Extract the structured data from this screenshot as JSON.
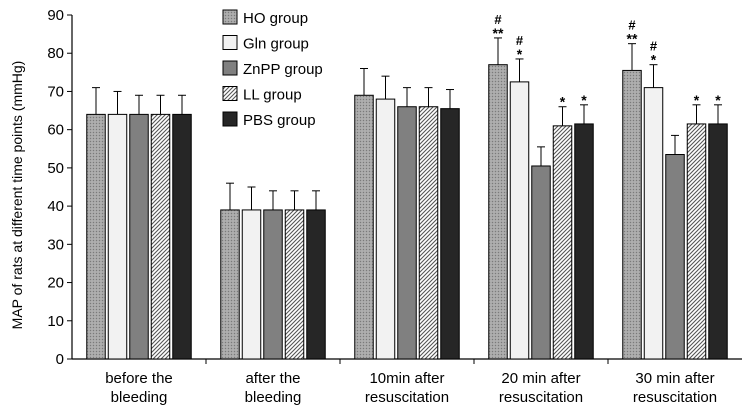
{
  "chart_data": {
    "type": "bar",
    "ylabel": "MAP of rats  at different time points (mmHg)",
    "ylim": [
      0,
      90
    ],
    "yticks": [
      0,
      10,
      20,
      30,
      40,
      50,
      60,
      70,
      80,
      90
    ],
    "grid": false,
    "legend_placement": "top-center",
    "categories": [
      [
        "before the",
        "bleeding"
      ],
      [
        "after the",
        "bleeding"
      ],
      [
        "10min after",
        "resuscitation"
      ],
      [
        "20 min after",
        "resuscitation"
      ],
      [
        "30 min after",
        "resuscitation"
      ]
    ],
    "series": [
      {
        "name": "HO group",
        "fill": "#a6a6a6",
        "pattern": "dots",
        "values": [
          64,
          39,
          69,
          77,
          75.5
        ],
        "errors": [
          7,
          7,
          7,
          7,
          7
        ],
        "annotations": [
          [],
          [],
          [],
          [
            "#",
            "**"
          ],
          [
            "#",
            "**"
          ]
        ]
      },
      {
        "name": "Gln group",
        "fill": "#f2f2f2",
        "pattern": "none",
        "values": [
          64,
          39,
          68,
          72.5,
          71
        ],
        "errors": [
          6,
          6,
          6,
          6,
          6
        ],
        "annotations": [
          [],
          [],
          [],
          [
            "#",
            "*"
          ],
          [
            "#",
            "*"
          ]
        ]
      },
      {
        "name": "ZnPP group",
        "fill": "#808080",
        "pattern": "none",
        "values": [
          64,
          39,
          66,
          50.5,
          53.5
        ],
        "errors": [
          5,
          5,
          5,
          5,
          5
        ],
        "annotations": [
          [],
          [],
          [],
          [],
          []
        ]
      },
      {
        "name": "LL group",
        "fill": "#ffffff",
        "pattern": "diagonal",
        "values": [
          64,
          39,
          66,
          61,
          61.5
        ],
        "errors": [
          5,
          5,
          5,
          5,
          5
        ],
        "annotations": [
          [],
          [],
          [],
          [
            "*"
          ],
          [
            "*"
          ]
        ]
      },
      {
        "name": "PBS group",
        "fill": "#262626",
        "pattern": "none",
        "values": [
          64,
          39,
          65.5,
          61.5,
          61.5
        ],
        "errors": [
          5,
          5,
          5,
          5,
          5
        ],
        "annotations": [
          [],
          [],
          [],
          [
            "*"
          ],
          [
            "*"
          ]
        ]
      }
    ]
  }
}
